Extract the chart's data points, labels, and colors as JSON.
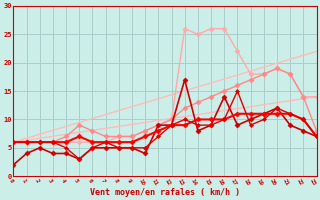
{
  "bg_color": "#cceee8",
  "grid_color": "#aacccc",
  "xlabel": "Vent moyen/en rafales ( km/h )",
  "xlim": [
    0,
    23
  ],
  "ylim": [
    0,
    30
  ],
  "xticks": [
    0,
    1,
    2,
    3,
    4,
    5,
    6,
    7,
    8,
    9,
    10,
    11,
    12,
    13,
    14,
    15,
    16,
    17,
    18,
    19,
    20,
    21,
    22,
    23
  ],
  "yticks": [
    0,
    5,
    10,
    15,
    20,
    25,
    30
  ],
  "series": [
    {
      "x": [
        0,
        23
      ],
      "y": [
        6,
        14
      ],
      "color": "#ffbbbb",
      "lw": 1.0,
      "marker": null,
      "ms": 0
    },
    {
      "x": [
        0,
        23
      ],
      "y": [
        6,
        22
      ],
      "color": "#ffbbbb",
      "lw": 1.0,
      "marker": null,
      "ms": 0
    },
    {
      "x": [
        0,
        1,
        2,
        3,
        4,
        5,
        6,
        7,
        8,
        9,
        10,
        11,
        12,
        13,
        14,
        15,
        16,
        17,
        18,
        19,
        20,
        21,
        22,
        23
      ],
      "y": [
        6,
        6,
        6,
        6,
        6,
        6,
        6,
        6,
        7,
        7,
        8,
        9,
        10,
        26,
        25,
        26,
        26,
        22,
        18,
        18,
        19,
        18,
        14,
        14
      ],
      "color": "#ffaaaa",
      "lw": 1.0,
      "marker": "D",
      "ms": 2.5
    },
    {
      "x": [
        0,
        1,
        2,
        3,
        4,
        5,
        6,
        7,
        8,
        9,
        10,
        11,
        12,
        13,
        14,
        15,
        16,
        17,
        18,
        19,
        20,
        21,
        22,
        23
      ],
      "y": [
        6,
        6,
        6,
        6,
        7,
        9,
        8,
        7,
        7,
        7,
        8,
        9,
        10,
        12,
        13,
        14,
        15,
        16,
        17,
        18,
        19,
        18,
        14,
        8
      ],
      "color": "#ff8888",
      "lw": 1.0,
      "marker": "D",
      "ms": 2.5
    },
    {
      "x": [
        0,
        1,
        2,
        3,
        4,
        5,
        6,
        7,
        8,
        9,
        10,
        11,
        12,
        13,
        14,
        15,
        16,
        17,
        18,
        19,
        20,
        21,
        22,
        23
      ],
      "y": [
        2,
        4,
        5,
        4,
        4,
        3,
        5,
        5,
        5,
        5,
        4,
        9,
        9,
        17,
        8,
        9,
        14,
        9,
        10,
        11,
        12,
        9,
        8,
        7
      ],
      "color": "#cc0000",
      "lw": 1.2,
      "marker": "D",
      "ms": 2.5
    },
    {
      "x": [
        0,
        1,
        2,
        3,
        4,
        5,
        6,
        7,
        8,
        9,
        10,
        11,
        12,
        13,
        14,
        15,
        16,
        17,
        18,
        19,
        20,
        21,
        22,
        23
      ],
      "y": [
        6,
        6,
        6,
        6,
        6,
        7,
        6,
        6,
        6,
        6,
        7,
        8,
        9,
        9,
        10,
        10,
        10,
        11,
        11,
        11,
        11,
        11,
        10,
        7
      ],
      "color": "#ff0000",
      "lw": 1.5,
      "marker": "D",
      "ms": 2.5
    },
    {
      "x": [
        0,
        1,
        2,
        3,
        4,
        5,
        6,
        7,
        8,
        9,
        10,
        11,
        12,
        13,
        14,
        15,
        16,
        17,
        18,
        19,
        20,
        21,
        22,
        23
      ],
      "y": [
        6,
        6,
        6,
        6,
        5,
        3,
        5,
        6,
        5,
        5,
        5,
        7,
        9,
        10,
        9,
        9,
        10,
        15,
        9,
        10,
        12,
        11,
        10,
        7
      ],
      "color": "#dd0000",
      "lw": 1.0,
      "marker": "D",
      "ms": 2.0
    }
  ]
}
